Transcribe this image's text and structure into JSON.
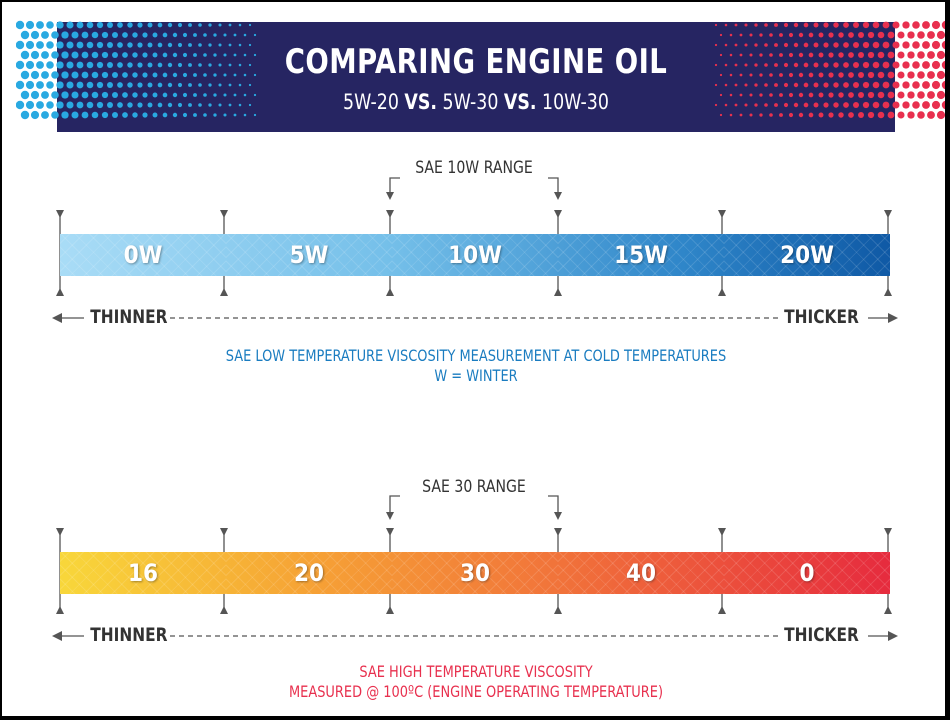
{
  "header": {
    "title": "COMPARING ENGINE OIL",
    "subtitle": {
      "a": "5W-20",
      "vs1": "VS.",
      "b": "5W-30",
      "vs2": "VS.",
      "c": "10W-30"
    },
    "colors": {
      "banner": "#262562",
      "dots_left": "#29a9e1",
      "dots_right": "#e8304e"
    }
  },
  "cold_scale": {
    "range_label": "SAE 10W RANGE",
    "segments": [
      "0W",
      "5W",
      "10W",
      "15W",
      "20W"
    ],
    "thinner_label": "THINNER",
    "thicker_label": "THICKER",
    "caption_line1": "SAE LOW TEMPERATURE VISCOSITY MEASUREMENT AT COLD TEMPERATURES",
    "caption_line2": "W = WINTER",
    "color": "#1a7cc0"
  },
  "hot_scale": {
    "range_label": "SAE 30 RANGE",
    "segments": [
      "16",
      "20",
      "30",
      "40",
      "0"
    ],
    "thinner_label": "THINNER",
    "thicker_label": "THICKER",
    "caption_line1": "SAE HIGH TEMPERATURE VISCOSITY",
    "caption_line2": "MEASURED @ 100ºC (ENGINE OPERATING TEMPERATURE)",
    "color": "#e8304e"
  }
}
